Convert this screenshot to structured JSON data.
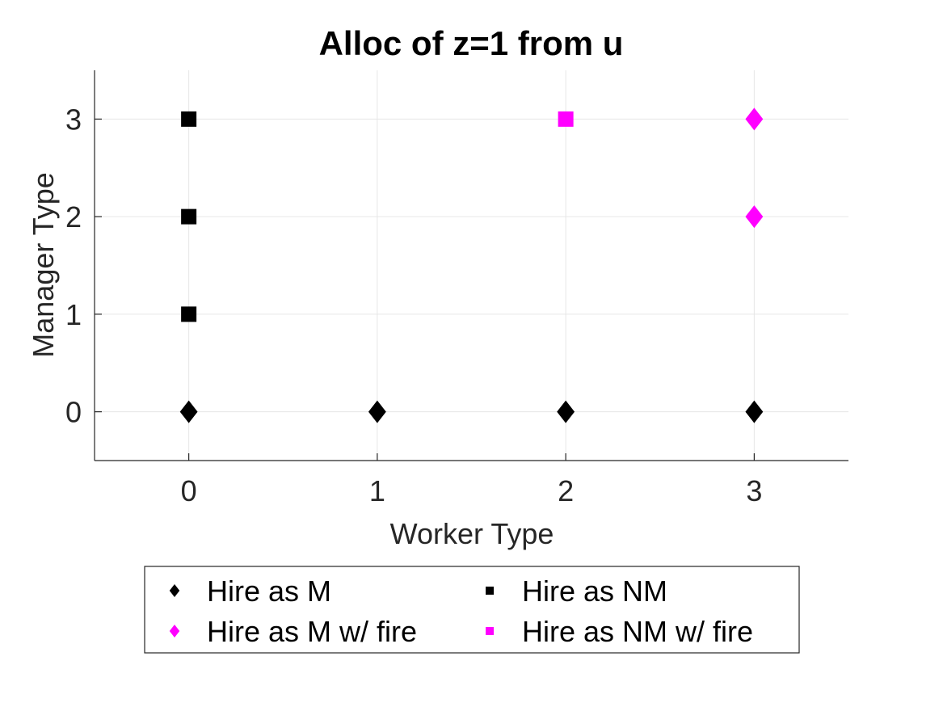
{
  "chart_data": {
    "type": "scatter",
    "title": "Alloc of z=1 from u",
    "xlabel": "Worker Type",
    "ylabel": "Manager Type",
    "xlim": [
      -0.5,
      3.5
    ],
    "ylim": [
      -0.5,
      3.5
    ],
    "xticks": [
      "0",
      "1",
      "2",
      "3"
    ],
    "yticks": [
      "0",
      "1",
      "2",
      "3"
    ],
    "grid": true,
    "legend_position": "bottom-outside",
    "series": [
      {
        "name": "Hire as M",
        "marker": "diamond",
        "color": "#000000",
        "points": [
          {
            "x": 0,
            "y": 0
          },
          {
            "x": 1,
            "y": 0
          },
          {
            "x": 2,
            "y": 0
          },
          {
            "x": 3,
            "y": 0
          }
        ]
      },
      {
        "name": "Hire as NM",
        "marker": "square",
        "color": "#000000",
        "points": [
          {
            "x": 0,
            "y": 1
          },
          {
            "x": 0,
            "y": 2
          },
          {
            "x": 0,
            "y": 3
          }
        ]
      },
      {
        "name": "Hire as M w/ fire",
        "marker": "diamond",
        "color": "#ff00ff",
        "points": [
          {
            "x": 3,
            "y": 2
          },
          {
            "x": 3,
            "y": 3
          }
        ]
      },
      {
        "name": "Hire as NM w/ fire",
        "marker": "square",
        "color": "#ff00ff",
        "points": [
          {
            "x": 2,
            "y": 3
          }
        ]
      }
    ]
  }
}
